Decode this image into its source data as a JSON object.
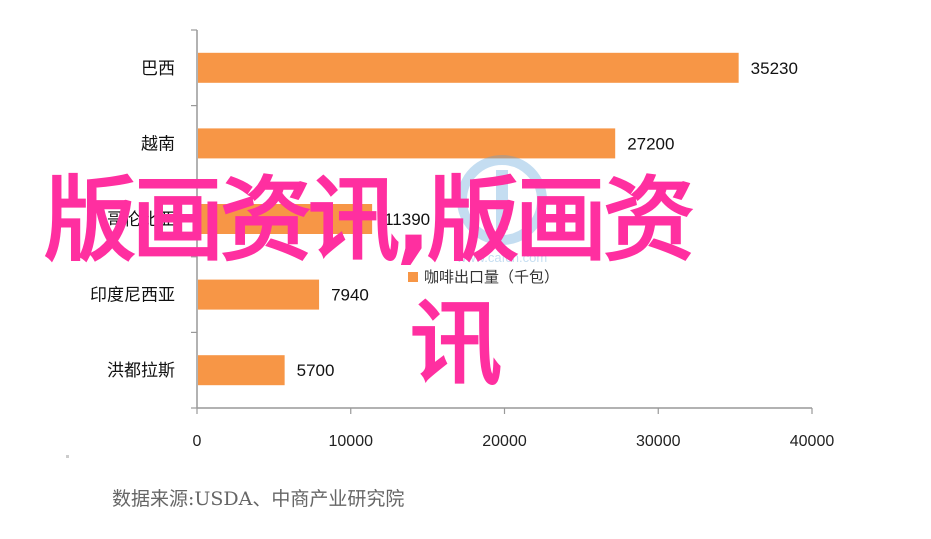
{
  "chart_data": {
    "type": "bar",
    "orientation": "horizontal",
    "categories": [
      "巴西",
      "越南",
      "哥伦比亚",
      "印度尼西亚",
      "洪都拉斯"
    ],
    "values": [
      35230,
      27200,
      11390,
      7940,
      5700
    ],
    "value_labels": [
      "35230",
      "27200",
      "11390",
      "7940",
      "5700"
    ],
    "legend": "咖啡出口量（千包）",
    "legend_placement": "center",
    "xlim": [
      0,
      40000
    ],
    "x_ticks": [
      "0",
      "10000",
      "20000",
      "30000",
      "40000"
    ],
    "grid": false,
    "bar_color": "#f79646"
  },
  "overlay": {
    "line1": "版画资讯,版画资",
    "line2": "讯",
    "color": "#ff2fa0"
  },
  "watermark_text": "www.cafcn.com",
  "source_note": "数据来源:USDA、中商产业研究院"
}
